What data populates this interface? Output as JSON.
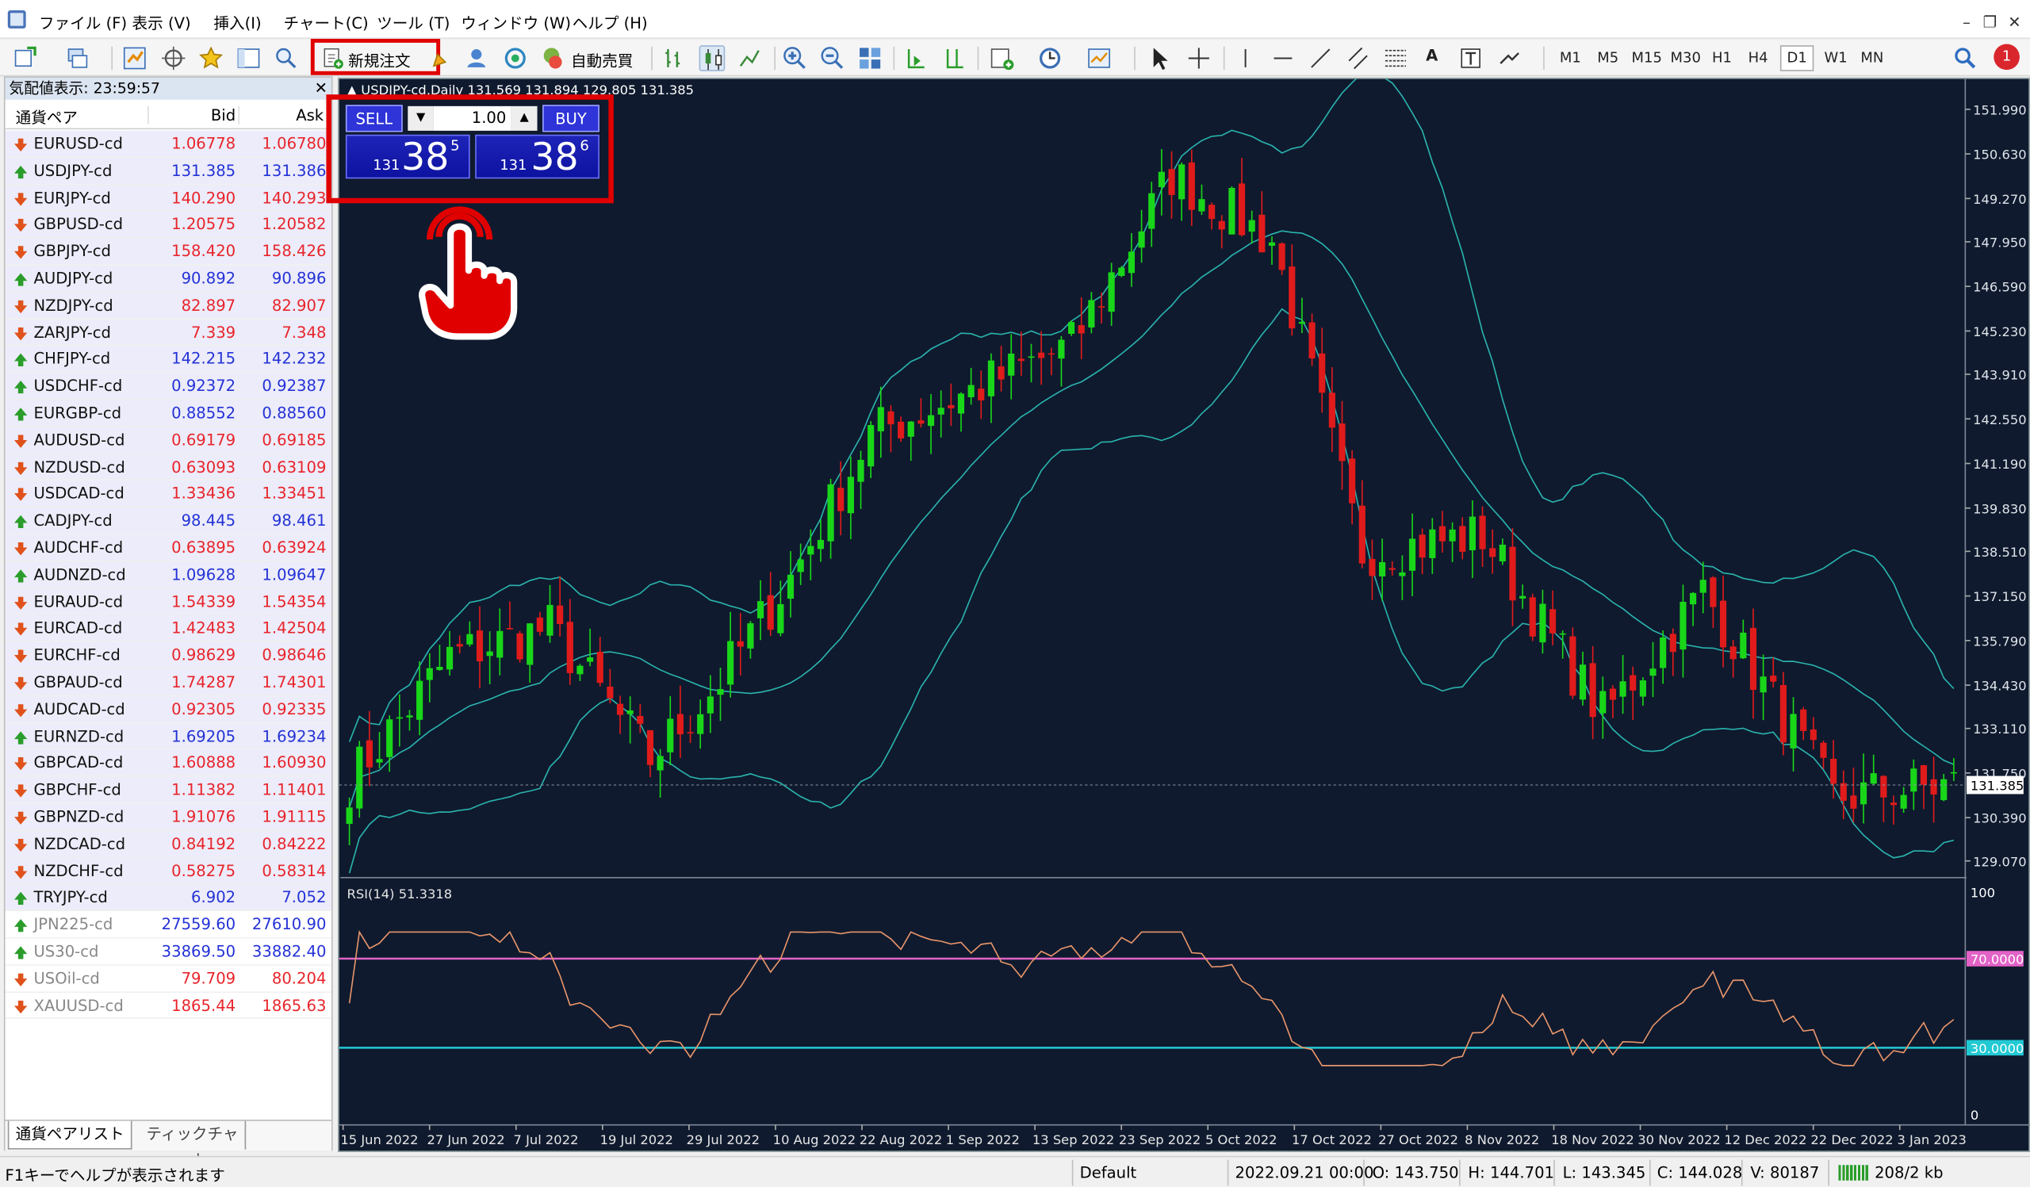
{
  "menu": {
    "items": [
      "ファイル (F)",
      "表示 (V)",
      "挿入(I)",
      "チャート(C)",
      "ツール (T)",
      "ウィンドウ (W)",
      "ヘルプ (H)"
    ]
  },
  "toolbar": {
    "new_order": "新規注文",
    "auto_trade": "自動売買",
    "timeframes": [
      "M1",
      "M5",
      "M15",
      "M30",
      "H1",
      "H4",
      "D1",
      "W1",
      "MN"
    ],
    "active_timeframe": "D1",
    "notify_count": "1"
  },
  "market_watch": {
    "title": "気配値表示: 23:59:57",
    "col_pair": "通貨ペア",
    "col_bid": "Bid",
    "col_ask": "Ask",
    "rows": [
      {
        "sym": "EURUSD-cd",
        "bid": "1.06778",
        "ask": "1.06780",
        "dir": "down",
        "color": "#e8242b"
      },
      {
        "sym": "USDJPY-cd",
        "bid": "131.385",
        "ask": "131.386",
        "dir": "up",
        "color": "#2432d6"
      },
      {
        "sym": "EURJPY-cd",
        "bid": "140.290",
        "ask": "140.293",
        "dir": "down",
        "color": "#e8242b"
      },
      {
        "sym": "GBPUSD-cd",
        "bid": "1.20575",
        "ask": "1.20582",
        "dir": "down",
        "color": "#e8242b"
      },
      {
        "sym": "GBPJPY-cd",
        "bid": "158.420",
        "ask": "158.426",
        "dir": "down",
        "color": "#e8242b"
      },
      {
        "sym": "AUDJPY-cd",
        "bid": "90.892",
        "ask": "90.896",
        "dir": "up",
        "color": "#2432d6"
      },
      {
        "sym": "NZDJPY-cd",
        "bid": "82.897",
        "ask": "82.907",
        "dir": "down",
        "color": "#e8242b"
      },
      {
        "sym": "ZARJPY-cd",
        "bid": "7.339",
        "ask": "7.348",
        "dir": "down",
        "color": "#e8242b"
      },
      {
        "sym": "CHFJPY-cd",
        "bid": "142.215",
        "ask": "142.232",
        "dir": "up",
        "color": "#2432d6"
      },
      {
        "sym": "USDCHF-cd",
        "bid": "0.92372",
        "ask": "0.92387",
        "dir": "up",
        "color": "#2432d6"
      },
      {
        "sym": "EURGBP-cd",
        "bid": "0.88552",
        "ask": "0.88560",
        "dir": "up",
        "color": "#2432d6"
      },
      {
        "sym": "AUDUSD-cd",
        "bid": "0.69179",
        "ask": "0.69185",
        "dir": "down",
        "color": "#e8242b"
      },
      {
        "sym": "NZDUSD-cd",
        "bid": "0.63093",
        "ask": "0.63109",
        "dir": "down",
        "color": "#e8242b"
      },
      {
        "sym": "USDCAD-cd",
        "bid": "1.33436",
        "ask": "1.33451",
        "dir": "down",
        "color": "#e8242b"
      },
      {
        "sym": "CADJPY-cd",
        "bid": "98.445",
        "ask": "98.461",
        "dir": "up",
        "color": "#2432d6"
      },
      {
        "sym": "AUDCHF-cd",
        "bid": "0.63895",
        "ask": "0.63924",
        "dir": "down",
        "color": "#e8242b"
      },
      {
        "sym": "AUDNZD-cd",
        "bid": "1.09628",
        "ask": "1.09647",
        "dir": "up",
        "color": "#2432d6"
      },
      {
        "sym": "EURAUD-cd",
        "bid": "1.54339",
        "ask": "1.54354",
        "dir": "down",
        "color": "#e8242b"
      },
      {
        "sym": "EURCAD-cd",
        "bid": "1.42483",
        "ask": "1.42504",
        "dir": "down",
        "color": "#e8242b"
      },
      {
        "sym": "EURCHF-cd",
        "bid": "0.98629",
        "ask": "0.98646",
        "dir": "down",
        "color": "#e8242b"
      },
      {
        "sym": "GBPAUD-cd",
        "bid": "1.74287",
        "ask": "1.74301",
        "dir": "down",
        "color": "#e8242b"
      },
      {
        "sym": "AUDCAD-cd",
        "bid": "0.92305",
        "ask": "0.92335",
        "dir": "down",
        "color": "#e8242b"
      },
      {
        "sym": "EURNZD-cd",
        "bid": "1.69205",
        "ask": "1.69234",
        "dir": "up",
        "color": "#2432d6"
      },
      {
        "sym": "GBPCAD-cd",
        "bid": "1.60888",
        "ask": "1.60930",
        "dir": "down",
        "color": "#e8242b"
      },
      {
        "sym": "GBPCHF-cd",
        "bid": "1.11382",
        "ask": "1.11401",
        "dir": "down",
        "color": "#e8242b"
      },
      {
        "sym": "GBPNZD-cd",
        "bid": "1.91076",
        "ask": "1.91115",
        "dir": "down",
        "color": "#e8242b"
      },
      {
        "sym": "NZDCAD-cd",
        "bid": "0.84192",
        "ask": "0.84222",
        "dir": "down",
        "color": "#e8242b"
      },
      {
        "sym": "NZDCHF-cd",
        "bid": "0.58275",
        "ask": "0.58314",
        "dir": "down",
        "color": "#e8242b"
      },
      {
        "sym": "TRYJPY-cd",
        "bid": "6.902",
        "ask": "7.052",
        "dir": "up",
        "color": "#2432d6"
      },
      {
        "sym": "JPN225-cd",
        "bid": "27559.60",
        "ask": "27610.90",
        "dir": "up",
        "color": "#2432d6",
        "dim": true
      },
      {
        "sym": "US30-cd",
        "bid": "33869.50",
        "ask": "33882.40",
        "dir": "up",
        "color": "#2432d6",
        "dim": true
      },
      {
        "sym": "USOil-cd",
        "bid": "79.709",
        "ask": "80.204",
        "dir": "down",
        "color": "#e8242b",
        "dim": true
      },
      {
        "sym": "XAUUSD-cd",
        "bid": "1865.44",
        "ask": "1865.63",
        "dir": "down",
        "color": "#e8242b",
        "dim": true
      }
    ],
    "tab_list": "通貨ペアリスト",
    "tab_tick": "ティックチャート"
  },
  "chart": {
    "header": "USDJPY-cd,Daily  131.569 131.894 129.805 131.385",
    "one_click": {
      "sell": "SELL",
      "buy": "BUY",
      "lot": "1.00",
      "sell_big": "38",
      "sell_small": "131",
      "sell_sup": "5",
      "buy_big": "38",
      "buy_small": "131",
      "buy_sup": "6"
    },
    "price_ticks": [
      "151.990",
      "150.630",
      "149.270",
      "147.950",
      "146.590",
      "145.230",
      "143.910",
      "142.550",
      "141.190",
      "139.830",
      "138.510",
      "137.150",
      "135.790",
      "134.430",
      "133.110",
      "131.750",
      "130.390",
      "129.070"
    ],
    "current_price": "131.385",
    "rsi_label": "RSI(14) 51.3318",
    "rsi_ticks": [
      "100",
      "70.0000",
      "30.0000",
      "0"
    ],
    "date_ticks": [
      "15 Jun 2022",
      "27 Jun 2022",
      "7 Jul 2022",
      "19 Jul 2022",
      "29 Jul 2022",
      "10 Aug 2022",
      "22 Aug 2022",
      "1 Sep 2022",
      "13 Sep 2022",
      "23 Sep 2022",
      "5 Oct 2022",
      "17 Oct 2022",
      "27 Oct 2022",
      "8 Nov 2022",
      "18 Nov 2022",
      "30 Nov 2022",
      "12 Dec 2022",
      "22 Dec 2022",
      "3 Jan 2023"
    ]
  },
  "status": {
    "help": "F1キーでヘルプが表示されます",
    "profile": "Default",
    "time": "2022.09.21 00:00",
    "open": "O: 143.750",
    "high": "H: 144.701",
    "low": "L: 143.345",
    "close": "C: 144.028",
    "volume": "V: 80187",
    "traffic": "208/2 kb"
  },
  "colors": {
    "bull": "#19d619",
    "bear": "#e01b1b",
    "band": "#2ab3ad",
    "rsi": "#e8956a",
    "level70": "#e262c7",
    "level30": "#21c9d3",
    "highlight": "#e00000"
  }
}
